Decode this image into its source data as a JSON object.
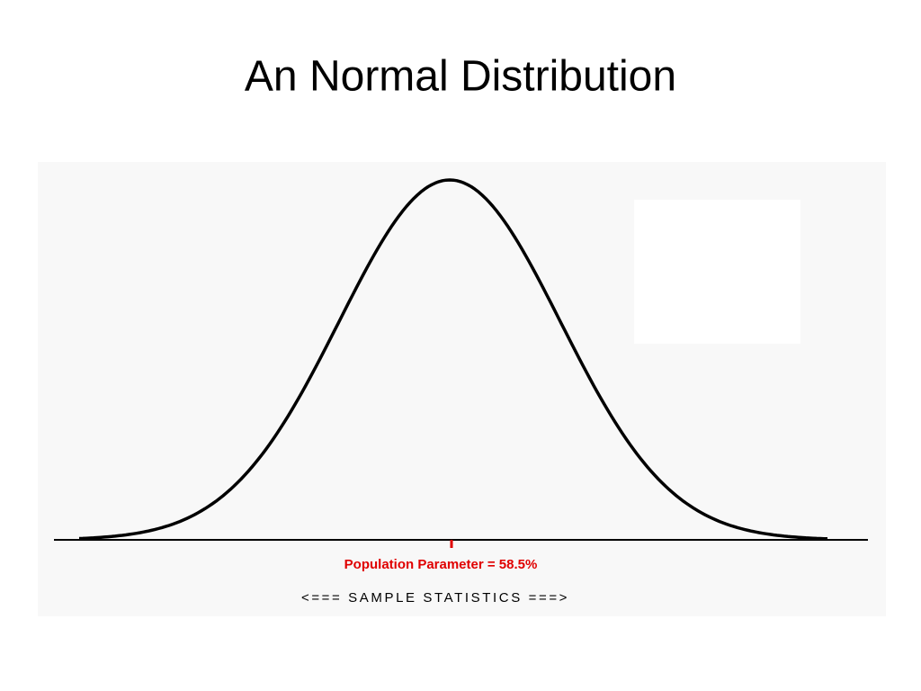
{
  "title": "An Normal Distribution",
  "diagram": {
    "parameter_label": "Population Parameter = 58.5%",
    "axis_label": "<=== SAMPLE STATISTICS ===>"
  }
}
